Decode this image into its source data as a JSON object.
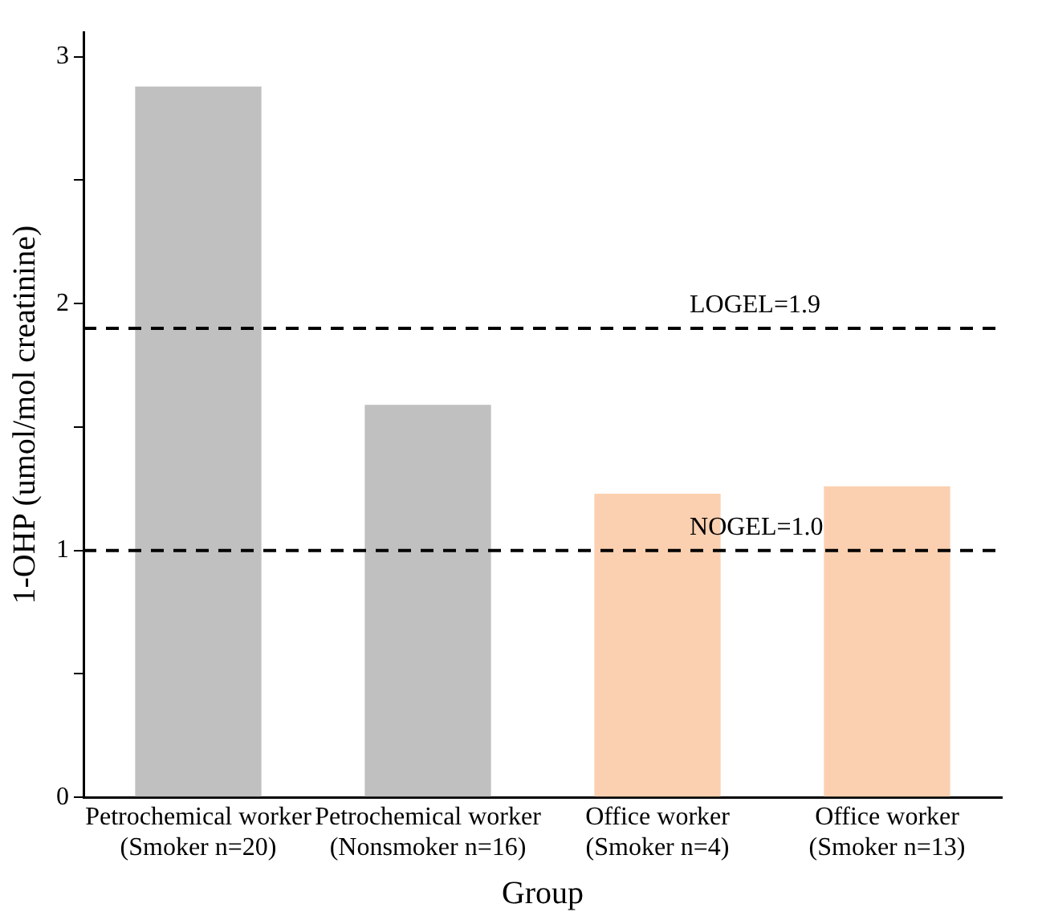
{
  "chart_data": {
    "type": "bar",
    "xlabel": "Group",
    "ylabel": "1-OHP (umol/mol creatinine)",
    "categories": [
      "Petrochemical worker\n(Smoker n=20)",
      "Petrochemical worker\n(Nonsmoker n=16)",
      "Office worker\n(Smoker n=4)",
      "Office worker\n(Smoker n=13)"
    ],
    "values": [
      2.88,
      1.59,
      1.23,
      1.26
    ],
    "colors": [
      "#c0c0c0",
      "#c0c0c0",
      "#fbd0b0",
      "#fbd0b0"
    ],
    "ylim": [
      0,
      3.1
    ],
    "yticks": [
      0,
      {
        "value": 0.5,
        "label": null
      },
      1,
      {
        "value": 1.5,
        "label": null
      },
      2,
      {
        "value": 2.5,
        "label": null
      },
      3
    ],
    "ref_lines": [
      {
        "axis": "y",
        "value": 1.9,
        "label": "LOGEL=1.9",
        "color": "#000000",
        "line_style": "dashed"
      },
      {
        "axis": "y",
        "value": 1.0,
        "label": "NOGEL=1.0",
        "color": "#000000",
        "line_style": "dashed"
      }
    ],
    "grid": false,
    "legend": false
  }
}
